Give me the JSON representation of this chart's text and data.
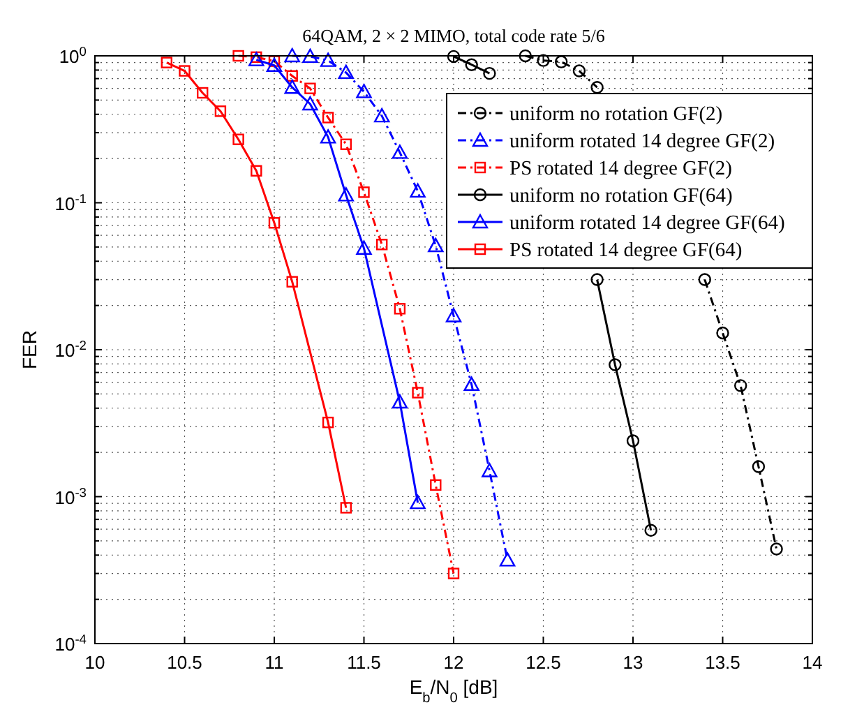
{
  "chart_data": {
    "type": "line",
    "title": "64QAM, 2 × 2 MIMO, total code rate 5/6",
    "xlabel": "E$_{b}$/N$_{0}$ [dB]",
    "ylabel": "FER",
    "log": "y",
    "grid": true,
    "legend": "top right",
    "xlim": [
      10,
      14
    ],
    "xticks": [
      10,
      10.5,
      11,
      11.5,
      12,
      12.5,
      13,
      13.5,
      14
    ],
    "ylim": [
      0.0001,
      1
    ],
    "yticks": [
      {
        "value": 0.0001,
        "label": "10$^{-4}$"
      },
      {
        "value": 0.0002,
        "label": null
      },
      {
        "value": 0.0003,
        "label": null
      },
      {
        "value": 0.0004,
        "label": null
      },
      {
        "value": 0.0005,
        "label": null
      },
      {
        "value": 0.0006,
        "label": null
      },
      {
        "value": 0.0007,
        "label": null
      },
      {
        "value": 0.0008,
        "label": null
      },
      {
        "value": 0.0009,
        "label": null
      },
      {
        "value": 0.001,
        "label": "10$^{-3}$"
      },
      {
        "value": 0.002,
        "label": null
      },
      {
        "value": 0.003,
        "label": null
      },
      {
        "value": 0.004,
        "label": null
      },
      {
        "value": 0.005,
        "label": null
      },
      {
        "value": 0.006,
        "label": null
      },
      {
        "value": 0.007,
        "label": null
      },
      {
        "value": 0.008,
        "label": null
      },
      {
        "value": 0.009,
        "label": null
      },
      {
        "value": 0.01,
        "label": "10$^{-2}$"
      },
      {
        "value": 0.02,
        "label": null
      },
      {
        "value": 0.03,
        "label": null
      },
      {
        "value": 0.04,
        "label": null
      },
      {
        "value": 0.05,
        "label": null
      },
      {
        "value": 0.06,
        "label": null
      },
      {
        "value": 0.07,
        "label": null
      },
      {
        "value": 0.08,
        "label": null
      },
      {
        "value": 0.09,
        "label": null
      },
      {
        "value": 0.1,
        "label": "10$^{-1}$"
      },
      {
        "value": 0.2,
        "label": null
      },
      {
        "value": 0.3,
        "label": null
      },
      {
        "value": 0.4,
        "label": null
      },
      {
        "value": 0.5,
        "label": null
      },
      {
        "value": 0.6,
        "label": null
      },
      {
        "value": 0.7,
        "label": null
      },
      {
        "value": 0.8,
        "label": null
      },
      {
        "value": 0.9,
        "label": null
      },
      {
        "value": 1,
        "label": "10$^{0}$"
      }
    ],
    "series": [
      {
        "name": "uniform no rotation GF(2)",
        "color": "#000000",
        "marker": "circle",
        "line_style": "dashed",
        "x": [
          12.4,
          12.5,
          12.6,
          12.7,
          12.8,
          12.9,
          13,
          13.1,
          13.2,
          13.3,
          13.4,
          13.5,
          13.6,
          13.7,
          13.8
        ],
        "values": [
          1.0,
          0.93,
          0.91,
          0.79,
          0.61,
          null,
          null,
          null,
          null,
          null,
          0.03,
          0.013,
          0.0057,
          0.0016,
          0.00044
        ]
      },
      {
        "name": "uniform rotated 14 degree GF(2)",
        "color": "#0000ff",
        "marker": "triangle",
        "line_style": "dashed",
        "x": [
          11.1,
          11.2,
          11.3,
          11.4,
          11.5,
          11.6,
          11.7,
          11.8,
          11.9,
          12,
          12.1,
          12.2,
          12.3
        ],
        "values": [
          1.0,
          0.99,
          0.93,
          0.77,
          0.57,
          0.39,
          0.22,
          0.12,
          0.051,
          0.017,
          0.0058,
          0.0015,
          0.00037
        ]
      },
      {
        "name": "PS rotated 14 degree GF(2)",
        "color": "#ff0000",
        "marker": "square",
        "line_style": "dashed",
        "x": [
          10.8,
          10.9,
          11,
          11.1,
          11.2,
          11.3,
          11.4,
          11.5,
          11.6,
          11.7,
          11.8,
          11.9,
          12
        ],
        "values": [
          1.0,
          0.98,
          0.92,
          0.73,
          0.6,
          0.38,
          0.25,
          0.118,
          0.052,
          0.019,
          0.0051,
          0.0012,
          0.0003
        ]
      },
      {
        "name": "uniform no rotation GF(64)",
        "color": "#000000",
        "marker": "circle",
        "line_style": "solid",
        "x": [
          12,
          12.1,
          12.2,
          12.3,
          12.4,
          12.5,
          12.6,
          12.7,
          12.8,
          12.9,
          13,
          13.1
        ],
        "values": [
          0.99,
          0.87,
          0.76,
          null,
          null,
          null,
          null,
          null,
          0.03,
          0.0079,
          0.0024,
          0.00059
        ]
      },
      {
        "name": "uniform rotated 14 degree GF(64)",
        "color": "#0000ff",
        "marker": "triangle",
        "line_style": "solid",
        "x": [
          10.9,
          11,
          11.1,
          11.2,
          11.3,
          11.4,
          11.5,
          11.7,
          11.8
        ],
        "values": [
          0.94,
          0.86,
          0.61,
          0.47,
          0.28,
          0.113,
          0.049,
          0.0044,
          0.00091
        ]
      },
      {
        "name": "PS rotated 14 degree GF(64)",
        "color": "#ff0000",
        "marker": "square",
        "line_style": "solid",
        "x": [
          10.4,
          10.5,
          10.6,
          10.7,
          10.8,
          10.9,
          11,
          11.1,
          11.3,
          11.4
        ],
        "values": [
          0.9,
          0.79,
          0.56,
          0.42,
          0.27,
          0.165,
          0.073,
          0.029,
          0.0032,
          0.00084
        ]
      }
    ]
  }
}
